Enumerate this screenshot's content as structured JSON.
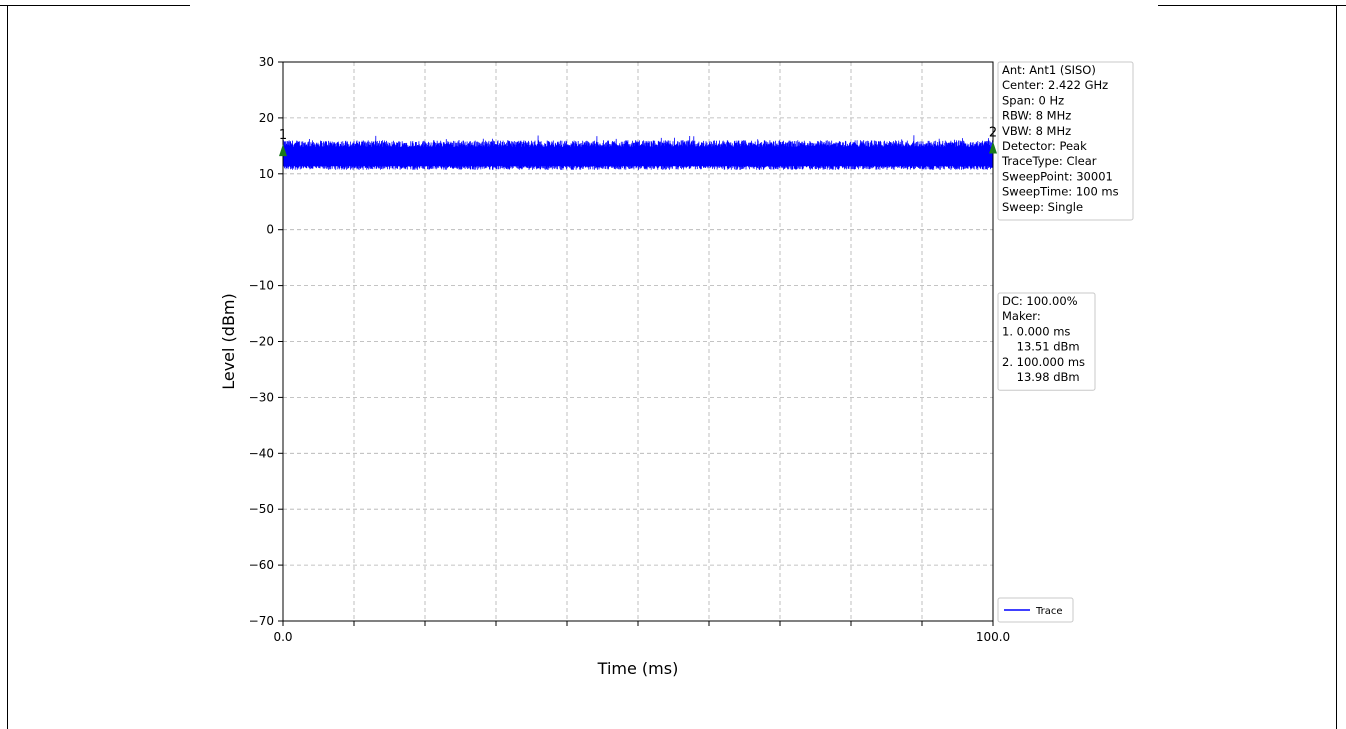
{
  "chart_data": {
    "type": "line",
    "xlabel": "Time (ms)",
    "ylabel": "Level (dBm)",
    "xlim": [
      0.0,
      100.0
    ],
    "ylim": [
      -70,
      30
    ],
    "x_tick_labels": [
      "0.0",
      "100.0"
    ],
    "x_minor_ticks": [
      0,
      10,
      20,
      30,
      40,
      50,
      60,
      70,
      80,
      90,
      100
    ],
    "y_ticks": [
      30,
      20,
      10,
      0,
      -10,
      -20,
      -30,
      -40,
      -50,
      -60,
      -70
    ],
    "y_tick_labels": [
      "30",
      "20",
      "10",
      "0",
      "−10",
      "−20",
      "−30",
      "−40",
      "−50",
      "−60",
      "−70"
    ],
    "grid": true,
    "series": [
      {
        "name": "Trace",
        "color": "#0000ff",
        "noise_floor_dbm": 11.0,
        "typical_peak_dbm": 15.0,
        "max_peak_dbm": 17.0,
        "points": 30001
      }
    ],
    "markers": [
      {
        "label": "1",
        "x": 0.0,
        "y": 13.51,
        "color": "#1a7a1a"
      },
      {
        "label": "2",
        "x": 100.0,
        "y": 13.98,
        "color": "#1a7a1a"
      }
    ],
    "info_box": [
      "Ant: Ant1 (SISO)",
      "Center: 2.422 GHz",
      "Span: 0 Hz",
      "RBW: 8 MHz",
      "VBW: 8 MHz",
      "Detector: Peak",
      "TraceType: Clear",
      "SweepPoint: 30001",
      "SweepTime: 100 ms",
      "Sweep: Single"
    ],
    "marker_box": [
      "DC: 100.00%",
      "Maker:",
      "1. 0.000 ms",
      "    13.51 dBm",
      "2. 100.000 ms",
      "    13.98 dBm"
    ],
    "legend": {
      "entries": [
        "Trace"
      ],
      "placement": "bottom-right-outside"
    }
  }
}
